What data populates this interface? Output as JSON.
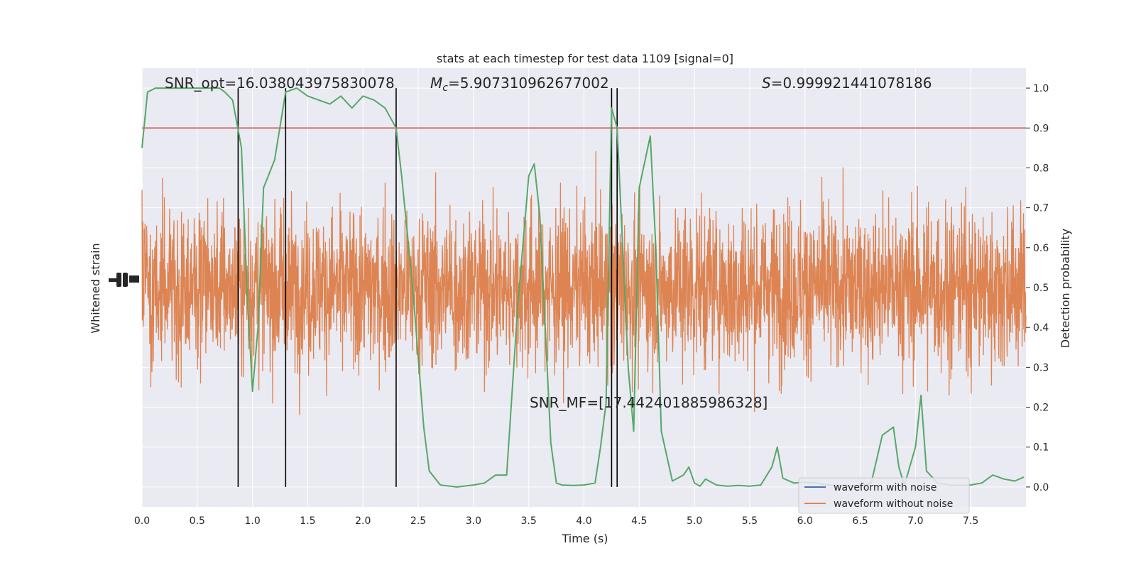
{
  "chart_data": {
    "type": "line",
    "title": "stats at each timestep for test data 1109 [signal=0]",
    "xlabel": "Time (s)",
    "ylabel_left": "Whitened strain",
    "ylabel_right": "Detection probability",
    "xlim": [
      0,
      8.0
    ],
    "ylim_right": [
      -0.05,
      1.05
    ],
    "grid": true,
    "x_ticks": [
      "0.0",
      "0.5",
      "1.0",
      "1.5",
      "2.0",
      "2.5",
      "3.0",
      "3.5",
      "4.0",
      "4.5",
      "5.0",
      "5.5",
      "6.0",
      "6.5",
      "7.0",
      "7.5"
    ],
    "y_right_ticks": [
      "0.0",
      "0.1",
      "0.2",
      "0.3",
      "0.4",
      "0.5",
      "0.6",
      "0.7",
      "0.8",
      "0.9",
      "1.0"
    ],
    "legend_position": "lower-right",
    "annotations": {
      "snr_opt": "SNR_opt=16.038043975830078",
      "mc_symbol": "M",
      "mc_sub": "c",
      "mc_value": "=5.907310962677002",
      "s_symbol": "S",
      "s_value": "=0.999921441078186",
      "snr_mf": "SNR_MF=[17.442401885986328]"
    },
    "series": [
      {
        "name": "waveform with noise",
        "color": "#4c72b0"
      },
      {
        "name": "waveform without noise",
        "color": "#dd8452"
      }
    ],
    "probability_series": {
      "color": "#55a868",
      "x": [
        0,
        0.05,
        0.12,
        0.3,
        0.5,
        0.7,
        0.75,
        0.82,
        0.9,
        0.95,
        1.0,
        1.05,
        1.1,
        1.2,
        1.3,
        1.4,
        1.5,
        1.6,
        1.7,
        1.8,
        1.9,
        2.0,
        2.1,
        2.2,
        2.3,
        2.35,
        2.45,
        2.55,
        2.6,
        2.7,
        2.85,
        3.0,
        3.1,
        3.2,
        3.3,
        3.4,
        3.5,
        3.55,
        3.6,
        3.7,
        3.75,
        3.8,
        3.9,
        4.0,
        4.1,
        4.15,
        4.2,
        4.25,
        4.3,
        4.35,
        4.4,
        4.45,
        4.5,
        4.6,
        4.65,
        4.7,
        4.8,
        4.9,
        4.95,
        5.0,
        5.05,
        5.1,
        5.2,
        5.3,
        5.4,
        5.5,
        5.6,
        5.7,
        5.75,
        5.8,
        5.9,
        6.0,
        6.1,
        6.2,
        6.3,
        6.4,
        6.5,
        6.6,
        6.7,
        6.8,
        6.85,
        6.9,
        7.0,
        7.05,
        7.1,
        7.2,
        7.3,
        7.4,
        7.5,
        7.6,
        7.7,
        7.8,
        7.9,
        7.98
      ],
      "y": [
        0.85,
        0.99,
        1.0,
        1.0,
        1.0,
        1.0,
        0.99,
        0.97,
        0.85,
        0.5,
        0.24,
        0.4,
        0.75,
        0.82,
        0.99,
        1.0,
        0.98,
        0.97,
        0.96,
        0.98,
        0.95,
        0.98,
        0.97,
        0.95,
        0.9,
        0.78,
        0.5,
        0.15,
        0.04,
        0.005,
        0.0,
        0.005,
        0.01,
        0.03,
        0.03,
        0.45,
        0.78,
        0.81,
        0.68,
        0.11,
        0.01,
        0.005,
        0.004,
        0.005,
        0.01,
        0.1,
        0.21,
        0.95,
        0.9,
        0.6,
        0.3,
        0.14,
        0.75,
        0.88,
        0.6,
        0.14,
        0.015,
        0.03,
        0.05,
        0.01,
        0.002,
        0.02,
        0.005,
        0.002,
        0.004,
        0.002,
        0.005,
        0.05,
        0.1,
        0.022,
        0.01,
        0.012,
        0.01,
        0.005,
        0.004,
        0.003,
        0.002,
        0.01,
        0.13,
        0.15,
        0.05,
        0.004,
        0.1,
        0.23,
        0.04,
        0.01,
        0.005,
        0.004,
        0.005,
        0.01,
        0.03,
        0.02,
        0.015,
        0.025
      ]
    },
    "threshold": {
      "value": 0.9,
      "color": "#c44e52"
    },
    "vertical_lines": [
      0.87,
      1.3,
      2.3,
      4.25,
      4.3
    ],
    "noise_color": "#dd8452"
  }
}
